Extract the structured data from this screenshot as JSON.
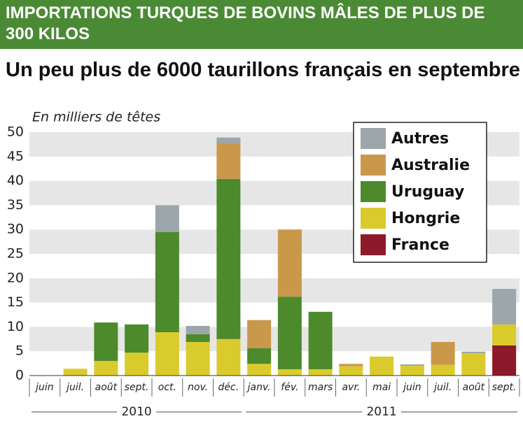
{
  "header": {
    "title": "IMPORTATIONS TURQUES DE BOVINS MÂLES DE PLUS DE 300 KILOS"
  },
  "chart_data": {
    "type": "stacked_bar",
    "title": "Un peu plus de 6000 taurillons français en septembre",
    "y_label": "En milliers de têtes",
    "categories": [
      "juin",
      "juil.",
      "août",
      "sept.",
      "oct.",
      "nov.",
      "déc.",
      "janv.",
      "fév.",
      "mars",
      "avr.",
      "mai",
      "juin",
      "juil.",
      "août",
      "sept."
    ],
    "groups": [
      {
        "label": "2010",
        "count": 7
      },
      {
        "label": "2011",
        "count": 9
      }
    ],
    "series": [
      {
        "name": "France",
        "color": "#8c1a2b",
        "values": [
          0,
          0,
          0,
          0,
          0,
          0,
          0,
          0,
          0,
          0,
          0,
          0,
          0,
          0,
          0,
          6.2
        ]
      },
      {
        "name": "Hongrie",
        "color": "#dacb2c",
        "values": [
          0,
          1.4,
          3.0,
          4.7,
          8.9,
          6.9,
          7.5,
          2.4,
          1.3,
          1.3,
          1.9,
          3.9,
          2.0,
          2.2,
          4.6,
          4.3
        ]
      },
      {
        "name": "Uruguay",
        "color": "#4c8a2c",
        "values": [
          0,
          0,
          7.9,
          5.8,
          20.6,
          1.6,
          32.9,
          3.2,
          14.9,
          11.8,
          0,
          0,
          0,
          0,
          0,
          0
        ]
      },
      {
        "name": "Australie",
        "color": "#c9984b",
        "values": [
          0,
          0,
          0,
          0,
          0,
          0,
          7.3,
          5.8,
          13.8,
          0,
          0.5,
          0,
          0,
          4.7,
          0,
          0
        ]
      },
      {
        "name": "Autres",
        "color": "#9da6aa",
        "values": [
          0,
          0,
          0,
          0,
          5.5,
          1.7,
          1.2,
          0,
          0,
          0,
          0,
          0,
          0.3,
          0,
          0.3,
          7.3
        ]
      }
    ],
    "ylim": [
      0,
      50
    ],
    "yticks": [
      0,
      5,
      10,
      15,
      20,
      25,
      30,
      35,
      40,
      45,
      50
    ],
    "grid": "bands",
    "legend": "top-right"
  }
}
